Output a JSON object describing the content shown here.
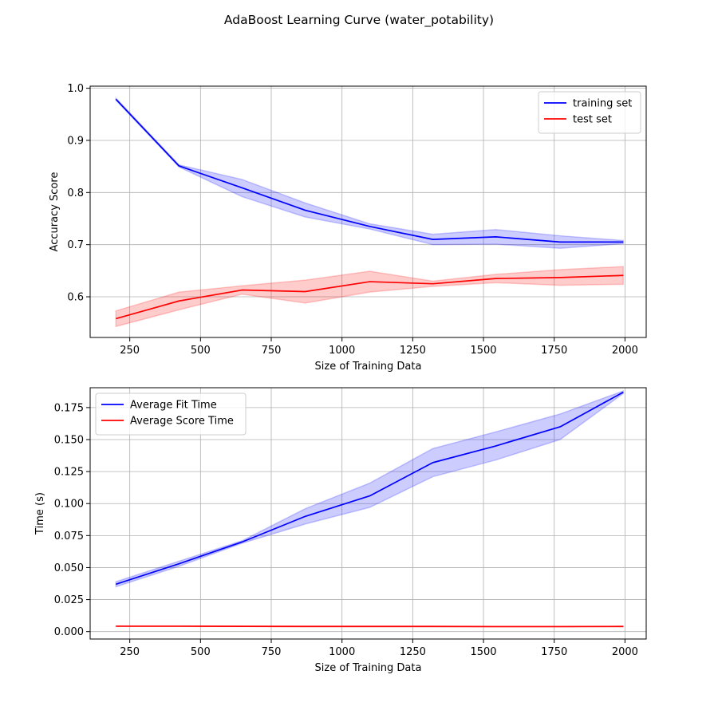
{
  "figure": {
    "title": "AdaBoost Learning Curve (water_potability)"
  },
  "chart_data": [
    {
      "type": "line",
      "xlabel": "Size of Training Data",
      "ylabel": "Accuracy Score",
      "xlim": [
        110,
        2075
      ],
      "ylim": [
        0.522,
        1.004
      ],
      "xticks": [
        250,
        500,
        750,
        1000,
        1250,
        1500,
        1750,
        2000
      ],
      "xtick_labels": [
        "250",
        "500",
        "750",
        "1000",
        "1250",
        "1500",
        "1750",
        "2000"
      ],
      "yticks": [
        0.6,
        0.7,
        0.8,
        0.9,
        1.0
      ],
      "ytick_labels": [
        "0.6",
        "0.7",
        "0.8",
        "0.9",
        "1.0"
      ],
      "grid": true,
      "legend": "top-right",
      "x": [
        201,
        424,
        647,
        870,
        1098,
        1321,
        1543,
        1771,
        1994
      ],
      "series": [
        {
          "name": "training set",
          "color": "#0000ff",
          "values": [
            0.979,
            0.851,
            0.809,
            0.766,
            0.735,
            0.71,
            0.715,
            0.705,
            0.705
          ],
          "lower": [
            0.977,
            0.849,
            0.792,
            0.753,
            0.73,
            0.7,
            0.701,
            0.693,
            0.702
          ],
          "upper": [
            0.981,
            0.853,
            0.825,
            0.78,
            0.74,
            0.72,
            0.729,
            0.717,
            0.708
          ]
        },
        {
          "name": "test set",
          "color": "#ff0000",
          "values": [
            0.558,
            0.592,
            0.613,
            0.61,
            0.629,
            0.625,
            0.635,
            0.637,
            0.641
          ],
          "lower": [
            0.543,
            0.575,
            0.605,
            0.588,
            0.609,
            0.62,
            0.627,
            0.622,
            0.624
          ],
          "upper": [
            0.573,
            0.609,
            0.621,
            0.632,
            0.649,
            0.63,
            0.643,
            0.652,
            0.658
          ]
        }
      ]
    },
    {
      "type": "line",
      "xlabel": "Size of Training Data",
      "ylabel": "Time (s)",
      "xlim": [
        110,
        2075
      ],
      "ylim": [
        -0.0058,
        0.1905
      ],
      "xticks": [
        250,
        500,
        750,
        1000,
        1250,
        1500,
        1750,
        2000
      ],
      "xtick_labels": [
        "250",
        "500",
        "750",
        "1000",
        "1250",
        "1500",
        "1750",
        "2000"
      ],
      "yticks": [
        0.0,
        0.025,
        0.05,
        0.075,
        0.1,
        0.125,
        0.15,
        0.175
      ],
      "ytick_labels": [
        "0.000",
        "0.025",
        "0.050",
        "0.075",
        "0.100",
        "0.125",
        "0.150",
        "0.175"
      ],
      "grid": true,
      "legend": "top-left",
      "x": [
        201,
        424,
        647,
        870,
        1098,
        1321,
        1543,
        1771,
        1994
      ],
      "series": [
        {
          "name": "Average Fit Time",
          "color": "#0000ff",
          "values": [
            0.037,
            0.053,
            0.07,
            0.09,
            0.106,
            0.132,
            0.145,
            0.16,
            0.187
          ],
          "lower": [
            0.035,
            0.051,
            0.069,
            0.084,
            0.097,
            0.121,
            0.134,
            0.15,
            0.186
          ],
          "upper": [
            0.039,
            0.055,
            0.071,
            0.096,
            0.116,
            0.143,
            0.156,
            0.17,
            0.188
          ]
        },
        {
          "name": "Average Score Time",
          "color": "#ff0000",
          "values": [
            0.0042,
            0.0042,
            0.0041,
            0.004,
            0.004,
            0.004,
            0.0039,
            0.0039,
            0.004
          ],
          "lower": [
            0.004,
            0.004,
            0.0039,
            0.0038,
            0.0038,
            0.0038,
            0.0037,
            0.0037,
            0.0038
          ],
          "upper": [
            0.0044,
            0.0044,
            0.0043,
            0.0042,
            0.0042,
            0.0042,
            0.0041,
            0.0041,
            0.0042
          ]
        }
      ]
    }
  ]
}
